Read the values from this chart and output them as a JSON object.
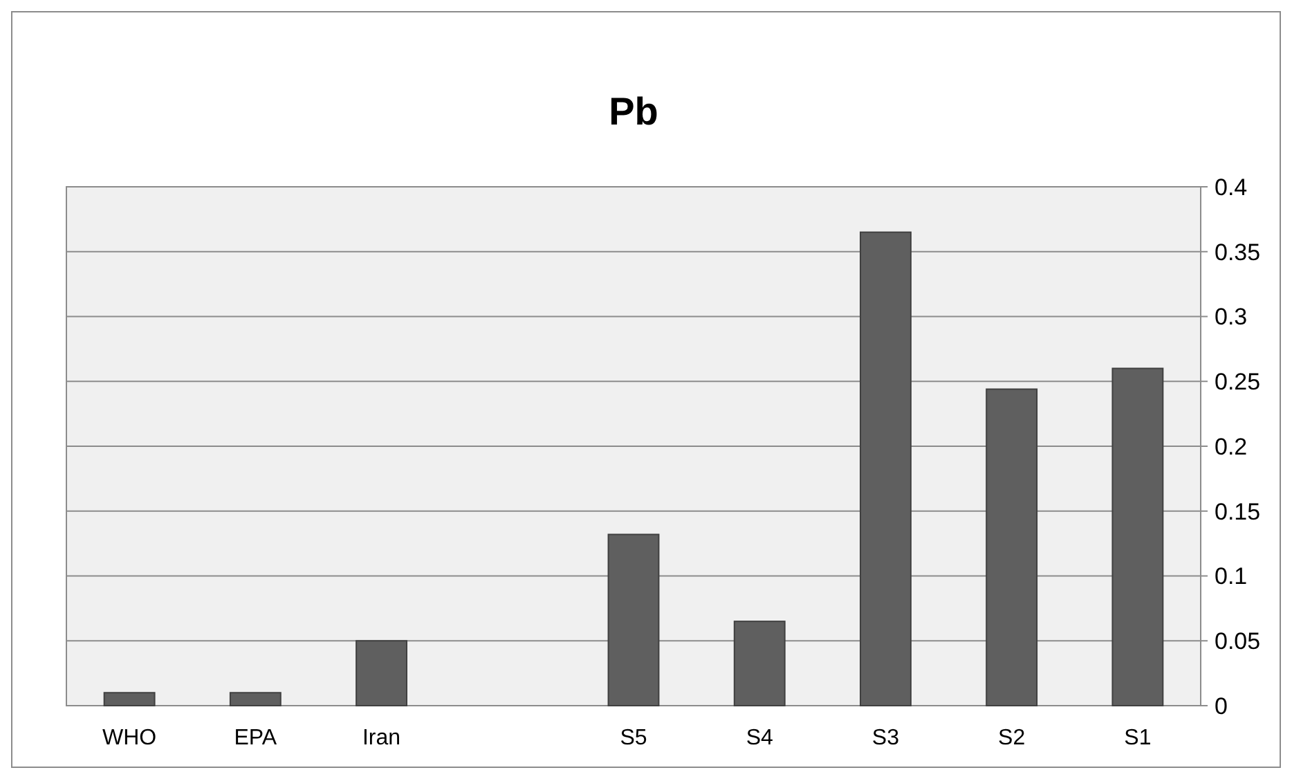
{
  "chart_data": {
    "type": "bar",
    "title": "Pb",
    "categories": [
      "WHO",
      "EPA",
      "Iran",
      null,
      "S5",
      "S4",
      "S3",
      "S2",
      "S1"
    ],
    "values": [
      0.01,
      0.01,
      0.05,
      null,
      0.132,
      0.065,
      0.365,
      0.244,
      0.26
    ],
    "color": "#5f5f5f",
    "ylim": [
      0,
      0.4
    ],
    "yticks": [
      0,
      0.05,
      0.1,
      0.15,
      0.2,
      0.25,
      0.3,
      0.35,
      0.4
    ],
    "grid": "y"
  }
}
